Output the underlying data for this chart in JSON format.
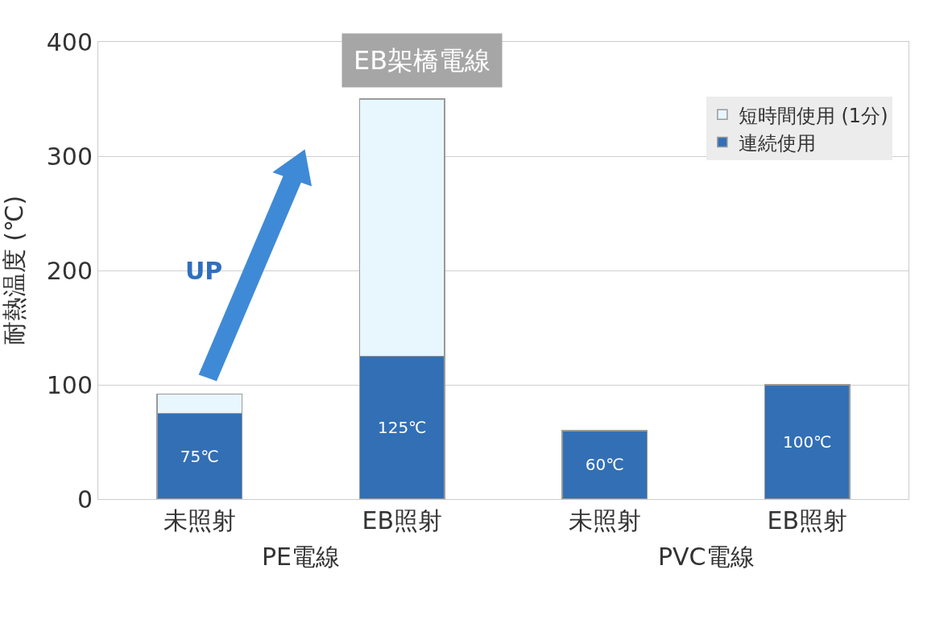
{
  "chart_data": {
    "type": "bar",
    "stacked": true,
    "ylabel": "耐熱温度 (℃)",
    "categories": [
      "未照射",
      "EB照射",
      "未照射",
      "EB照射"
    ],
    "series": [
      {
        "name": "連続使用",
        "color": "#326fb5",
        "values": [
          75,
          125,
          60,
          100
        ],
        "value_labels": [
          "75℃",
          "125℃",
          "60℃",
          "100℃"
        ]
      },
      {
        "name": "短時間使用 (1分)",
        "color": "#e8f6fd",
        "values": [
          17,
          225,
          null,
          null
        ]
      }
    ],
    "annotations": [
      "EB架橋電線",
      "UP",
      "PE電線",
      "PVC電線"
    ],
    "ylim": [
      0,
      400
    ],
    "yticks": [
      0,
      100,
      200,
      300,
      400
    ],
    "grid": "y",
    "legend": "top right"
  }
}
